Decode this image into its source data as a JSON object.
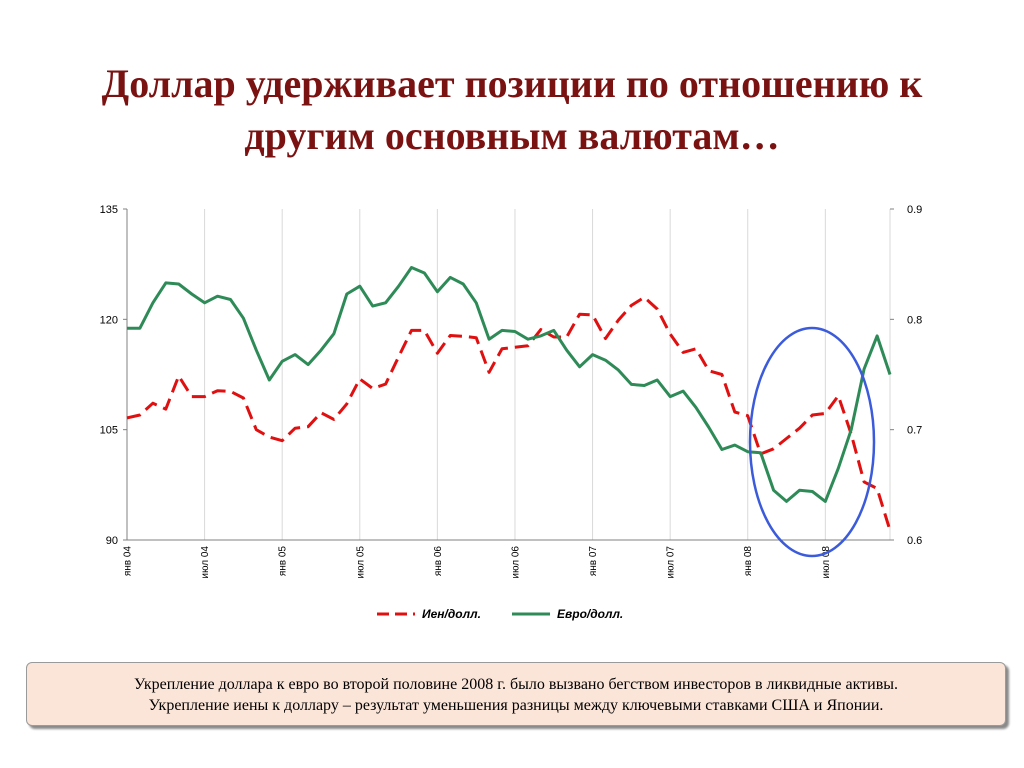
{
  "slide": {
    "title_line1": "Доллар удерживает позиции по отношению к",
    "title_line2": "другим основным валютам…"
  },
  "note": {
    "line1": "Укрепление доллара к евро во второй половине 2008 г. было вызвано бегством инвесторов в ликвидные активы.",
    "line2": "Укрепление иены к доллару – результат уменьшения разницы между ключевыми ставками США и Японии."
  },
  "colors": {
    "yen": "#e01010",
    "euro": "#2e8b57",
    "highlight_circle": "#3b5bdb",
    "title": "#7a1212"
  },
  "chart_data": {
    "type": "line",
    "x_tick_labels": [
      "янв 04",
      "июл 04",
      "янв 05",
      "июл 05",
      "янв 06",
      "июл 06",
      "янв 07",
      "июл 07",
      "янв 08",
      "июл 08"
    ],
    "x_tick_month_index": [
      0,
      6,
      12,
      18,
      24,
      30,
      36,
      42,
      48,
      54
    ],
    "y_left": {
      "ticks": [
        90,
        105,
        120,
        135
      ],
      "ylim": [
        90,
        135
      ]
    },
    "y_right": {
      "ticks": [
        "0.6",
        "0.7",
        "0.8",
        "0.9"
      ],
      "ylim": [
        0.6,
        0.9
      ]
    },
    "grid": "vertical",
    "legend_position": "bottom",
    "highlight": "ellipse around 2008 H2",
    "series": [
      {
        "name": "Иен/долл.",
        "axis": "left",
        "style": "dashed",
        "color": "#e01010",
        "values": [
          106.6,
          107.0,
          108.6,
          107.8,
          112.3,
          109.5,
          109.5,
          110.3,
          110.2,
          109.3,
          105.0,
          104.0,
          103.5,
          105.2,
          105.4,
          107.3,
          106.4,
          108.5,
          111.9,
          110.6,
          111.2,
          114.9,
          118.5,
          118.5,
          115.4,
          117.8,
          117.7,
          117.5,
          112.8,
          116.0,
          116.2,
          116.4,
          118.6,
          117.6,
          117.6,
          120.7,
          120.6,
          117.4,
          119.9,
          121.9,
          123.0,
          121.4,
          118.0,
          115.5,
          116.0,
          113.0,
          112.5,
          107.4,
          106.9,
          101.7,
          102.4,
          103.8,
          105.2,
          107.0,
          107.2,
          109.6,
          104.4,
          97.9,
          97.0,
          91.3
        ]
      },
      {
        "name": "Евро/долл.",
        "axis": "right",
        "style": "solid",
        "color": "#2e8b57",
        "values": [
          0.792,
          0.792,
          0.815,
          0.833,
          0.832,
          0.823,
          0.815,
          0.821,
          0.818,
          0.801,
          0.772,
          0.745,
          0.762,
          0.768,
          0.759,
          0.772,
          0.787,
          0.823,
          0.83,
          0.812,
          0.815,
          0.83,
          0.847,
          0.842,
          0.825,
          0.838,
          0.832,
          0.815,
          0.782,
          0.79,
          0.789,
          0.782,
          0.785,
          0.79,
          0.772,
          0.757,
          0.768,
          0.763,
          0.754,
          0.741,
          0.74,
          0.745,
          0.73,
          0.735,
          0.72,
          0.702,
          0.682,
          0.686,
          0.68,
          0.679,
          0.645,
          0.635,
          0.645,
          0.644,
          0.635,
          0.665,
          0.7,
          0.755,
          0.785,
          0.75
        ]
      }
    ]
  }
}
